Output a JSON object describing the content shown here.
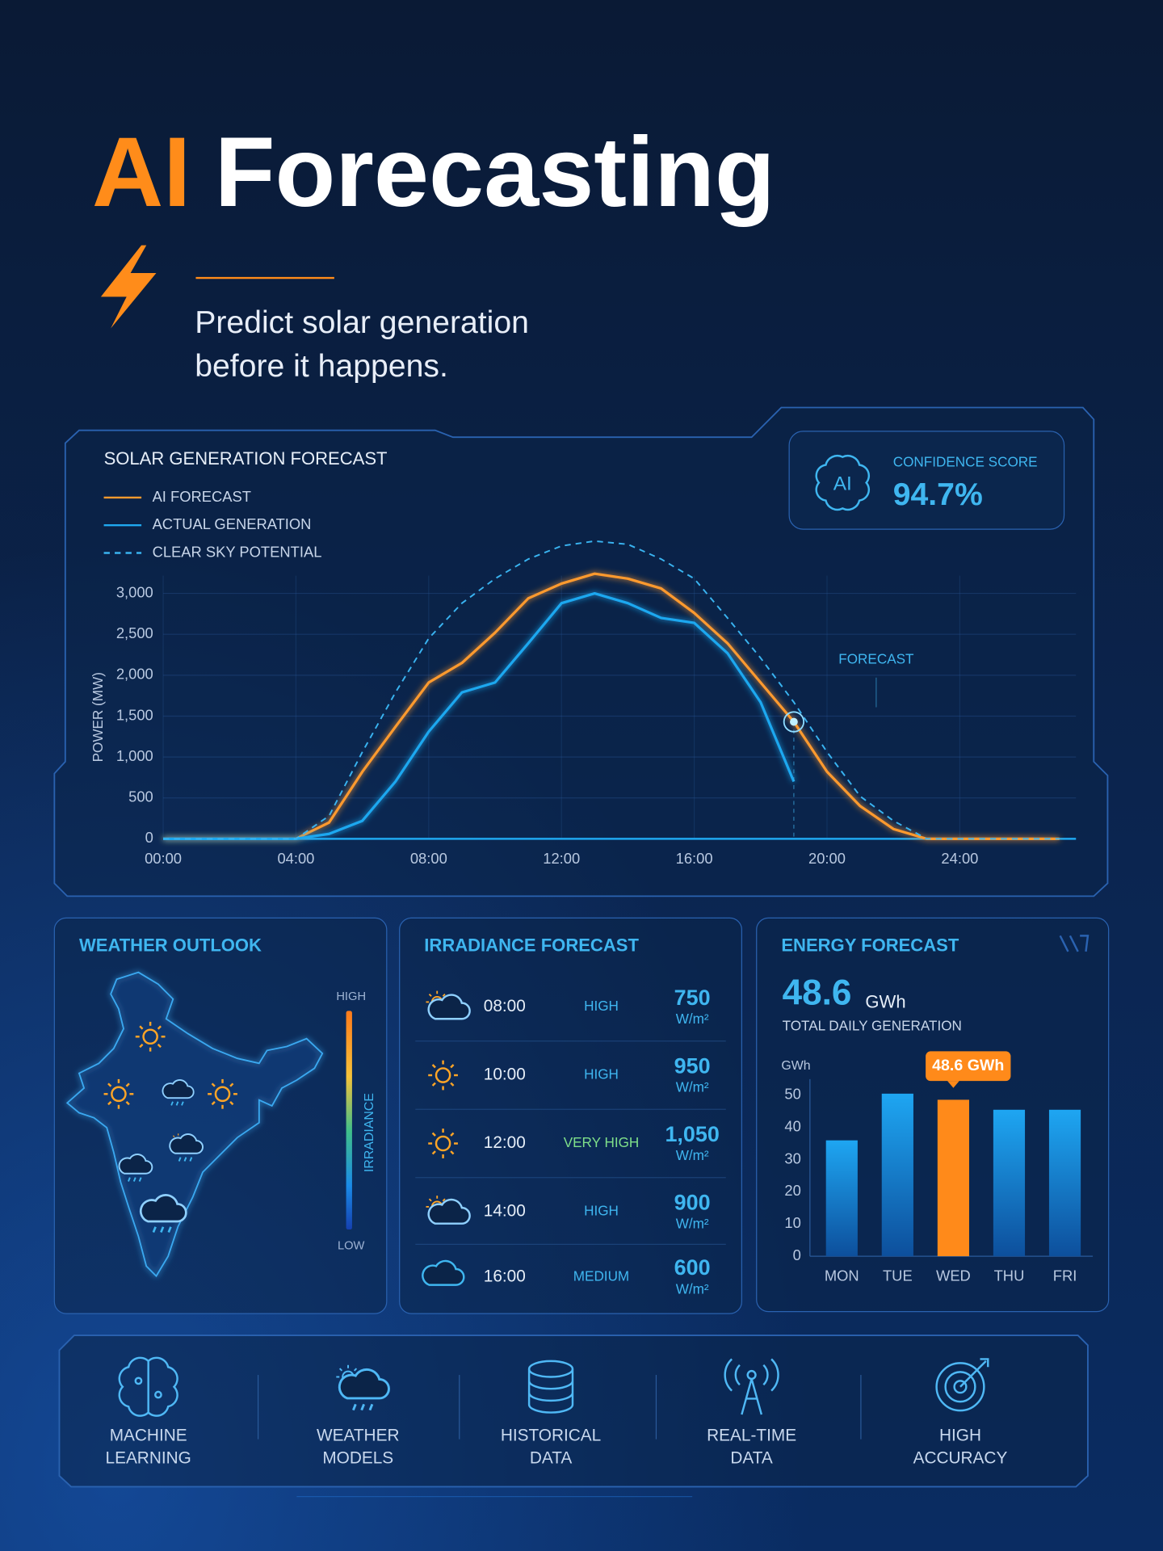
{
  "header": {
    "title_accent": "AI",
    "title": "Forecasting",
    "subtitle": [
      "Predict solar generation",
      "before it happens."
    ]
  },
  "confidence": {
    "icon": "AI",
    "label": "CONFIDENCE SCORE",
    "value": "94.7%"
  },
  "chart_data": [
    {
      "type": "line",
      "title": "SOLAR GENERATION FORECAST",
      "y_label": "POWER (MW)",
      "annotation": "FORECAST",
      "x": [
        0,
        1,
        2,
        3,
        4,
        5,
        6,
        7,
        8,
        9,
        10,
        11,
        12,
        13,
        14,
        15,
        16,
        17,
        18,
        19,
        20,
        21,
        22,
        23,
        24,
        25,
        26,
        27
      ],
      "xlim": [
        0,
        27.5
      ],
      "xticks": [
        {
          "value": 0,
          "label": "00:00"
        },
        {
          "value": 4,
          "label": "04:00"
        },
        {
          "value": 8,
          "label": "08:00"
        },
        {
          "value": 12,
          "label": "12:00"
        },
        {
          "value": 16,
          "label": "16:00"
        },
        {
          "value": 20,
          "label": "20:00"
        },
        {
          "value": 24,
          "label": "24:00"
        }
      ],
      "ylim": [
        0,
        3700
      ],
      "yticks": [
        0,
        500,
        {
          "value": 1000,
          "label": "1,000"
        },
        {
          "value": 1500,
          "label": "1,500"
        },
        {
          "value": 2000,
          "label": "2,000"
        },
        {
          "value": 2500,
          "label": "2,500"
        },
        {
          "value": 3000,
          "label": "3,000"
        }
      ],
      "grid": true,
      "series": [
        {
          "name": "AI FORECAST",
          "color": "#ff9a2e",
          "dashed": false,
          "values": [
            0,
            0,
            0,
            0,
            0,
            200,
            820,
            1370,
            1910,
            2150,
            2520,
            2940,
            3120,
            3240,
            3180,
            3060,
            2760,
            2390,
            1910,
            1430,
            820,
            400,
            120,
            0,
            0,
            0,
            0,
            0
          ]
        },
        {
          "name": "ACTUAL GENERATION",
          "color": "#1fa8f0",
          "dashed": false,
          "values": [
            0,
            0,
            0,
            0,
            0,
            60,
            220,
            700,
            1310,
            1790,
            1910,
            2390,
            2880,
            3000,
            2880,
            2700,
            2640,
            2270,
            1670,
            700,
            null,
            null,
            null,
            null,
            null,
            null,
            null,
            null
          ]
        },
        {
          "name": "CLEAR SKY POTENTIAL",
          "color": "#39b3f0",
          "dashed": true,
          "values": [
            0,
            0,
            0,
            0,
            0,
            280,
            1060,
            1790,
            2450,
            2880,
            3180,
            3420,
            3580,
            3640,
            3600,
            3420,
            3180,
            2700,
            2210,
            1670,
            1060,
            520,
            220,
            0,
            0,
            0,
            0,
            0
          ]
        }
      ]
    },
    {
      "type": "bar",
      "title": "ENERGY FORECAST",
      "total": 48.6,
      "total_unit": "GWh",
      "caption": "TOTAL DAILY GENERATION",
      "y_label": "GWh",
      "categories": [
        "MON",
        "TUE",
        "WED",
        "THU",
        "FRI"
      ],
      "values": [
        36,
        50.5,
        48.6,
        45.5,
        45.5
      ],
      "value_labels": [
        null,
        null,
        "48.6 GWh",
        null,
        null
      ],
      "color": "#1e9be8",
      "highlight_color": "#ff8a1a",
      "ylim": [
        0,
        55
      ],
      "yticks": [
        0,
        10,
        20,
        30,
        40,
        50
      ],
      "grid": false
    }
  ],
  "weather": {
    "title": "WEATHER OUTLOOK",
    "scale_high": "HIGH",
    "scale_low": "LOW",
    "scale_label": "IRRADIANCE"
  },
  "irradiance": {
    "title": "IRRADIANCE FORECAST",
    "rows": [
      {
        "time": "08:00",
        "level": "HIGH",
        "value": "750",
        "unit": "W/m²"
      },
      {
        "time": "10:00",
        "level": "HIGH",
        "value": "950",
        "unit": "W/m²"
      },
      {
        "time": "12:00",
        "level": "VERY HIGH",
        "value": "1,050",
        "unit": "W/m²"
      },
      {
        "time": "14:00",
        "level": "HIGH",
        "value": "900",
        "unit": "W/m²"
      },
      {
        "time": "16:00",
        "level": "MEDIUM",
        "value": "600",
        "unit": "W/m²"
      }
    ]
  },
  "features": [
    [
      "MACHINE",
      "LEARNING"
    ],
    [
      "WEATHER",
      "MODELS"
    ],
    [
      "HISTORICAL",
      "DATA"
    ],
    [
      "REAL-TIME",
      "DATA"
    ],
    [
      "HIGH",
      "ACCURACY"
    ]
  ]
}
